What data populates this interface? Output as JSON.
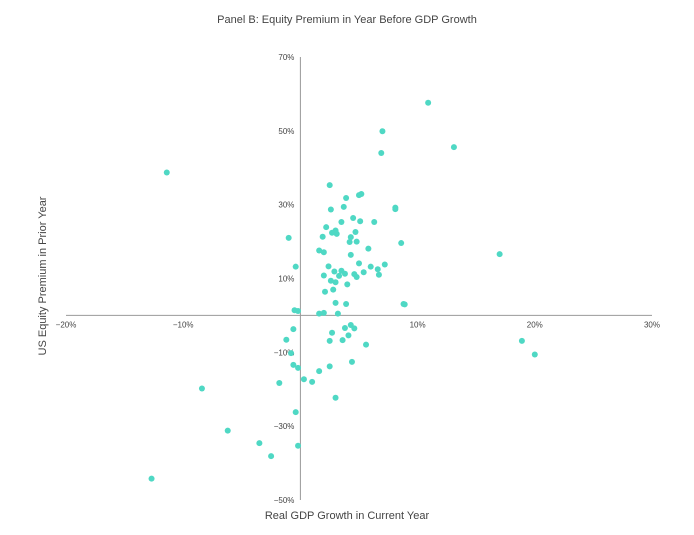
{
  "chart_data": {
    "type": "scatter",
    "title": "Panel B: Equity Premium in Year Before GDP Growth",
    "xlabel": "Real GDP Growth in Current Year",
    "ylabel": "US Equity Premium in Prior Year",
    "xlim": [
      -20,
      30
    ],
    "ylim": [
      -50,
      70
    ],
    "x_ticks": [
      -20,
      -10,
      10,
      20,
      30
    ],
    "y_ticks": [
      70,
      50,
      30,
      10,
      -10,
      -30,
      -50
    ],
    "x_tick_labels": [
      "−20%",
      "−10%",
      "10%",
      "20%",
      "30%"
    ],
    "y_tick_labels": [
      "70%",
      "50%",
      "30%",
      "10%",
      "−10%",
      "−30%",
      "−50%"
    ],
    "grid": false,
    "marker_color": "#4fd8c4",
    "axis_color": "#999999",
    "series": [
      {
        "points": [
          [
            10.9,
            57.6
          ],
          [
            13.1,
            45.6
          ],
          [
            7.0,
            49.9
          ],
          [
            6.9,
            44.0
          ],
          [
            -11.4,
            38.7
          ],
          [
            2.5,
            35.3
          ],
          [
            5.2,
            32.9
          ],
          [
            5.0,
            32.6
          ],
          [
            3.9,
            31.8
          ],
          [
            3.7,
            29.4
          ],
          [
            8.1,
            29.2
          ],
          [
            8.1,
            28.8
          ],
          [
            2.6,
            28.7
          ],
          [
            4.5,
            26.4
          ],
          [
            5.1,
            25.5
          ],
          [
            3.5,
            25.3
          ],
          [
            6.3,
            25.3
          ],
          [
            2.2,
            23.9
          ],
          [
            3.0,
            23.0
          ],
          [
            4.7,
            22.6
          ],
          [
            2.7,
            22.4
          ],
          [
            3.1,
            22.1
          ],
          [
            1.9,
            21.3
          ],
          [
            4.3,
            21.2
          ],
          [
            -1.0,
            21.0
          ],
          [
            4.8,
            20.0
          ],
          [
            4.2,
            19.9
          ],
          [
            8.6,
            19.6
          ],
          [
            5.8,
            18.1
          ],
          [
            1.6,
            17.6
          ],
          [
            2.0,
            17.1
          ],
          [
            17.0,
            16.6
          ],
          [
            4.3,
            16.4
          ],
          [
            5.0,
            14.1
          ],
          [
            7.2,
            13.8
          ],
          [
            2.4,
            13.3
          ],
          [
            -0.4,
            13.2
          ],
          [
            6.0,
            13.2
          ],
          [
            6.6,
            12.5
          ],
          [
            3.5,
            12.1
          ],
          [
            2.9,
            11.9
          ],
          [
            5.4,
            11.7
          ],
          [
            3.8,
            11.3
          ],
          [
            4.6,
            11.2
          ],
          [
            6.7,
            11.0
          ],
          [
            2.0,
            10.8
          ],
          [
            3.3,
            10.7
          ],
          [
            4.8,
            10.4
          ],
          [
            2.6,
            9.4
          ],
          [
            3.0,
            9.0
          ],
          [
            4.0,
            8.4
          ],
          [
            2.8,
            7.0
          ],
          [
            2.1,
            6.4
          ],
          [
            3.0,
            3.4
          ],
          [
            3.9,
            3.1
          ],
          [
            8.8,
            3.1
          ],
          [
            8.9,
            3.0
          ],
          [
            -0.5,
            1.4
          ],
          [
            -0.2,
            1.2
          ],
          [
            2.0,
            0.7
          ],
          [
            1.6,
            0.5
          ],
          [
            3.2,
            0.5
          ],
          [
            4.3,
            -2.6
          ],
          [
            3.8,
            -3.4
          ],
          [
            -0.6,
            -3.7
          ],
          [
            4.6,
            -3.5
          ],
          [
            2.7,
            -4.7
          ],
          [
            5.6,
            -7.9
          ],
          [
            4.1,
            -5.4
          ],
          [
            3.6,
            -6.7
          ],
          [
            2.5,
            -6.9
          ],
          [
            18.9,
            -6.9
          ],
          [
            -1.2,
            -6.6
          ],
          [
            -0.8,
            -10.2
          ],
          [
            -0.6,
            -13.4
          ],
          [
            -0.2,
            -14.2
          ],
          [
            2.5,
            -13.8
          ],
          [
            20.0,
            -10.6
          ],
          [
            4.4,
            -12.6
          ],
          [
            1.6,
            -15.1
          ],
          [
            0.3,
            -17.3
          ],
          [
            1.0,
            -18.0
          ],
          [
            -1.8,
            -18.3
          ],
          [
            -8.4,
            -19.8
          ],
          [
            3.0,
            -22.3
          ],
          [
            -0.4,
            -26.2
          ],
          [
            -6.2,
            -31.2
          ],
          [
            -3.5,
            -34.6
          ],
          [
            -0.2,
            -35.3
          ],
          [
            -2.5,
            -38.1
          ],
          [
            -12.7,
            -44.2
          ]
        ]
      }
    ]
  }
}
